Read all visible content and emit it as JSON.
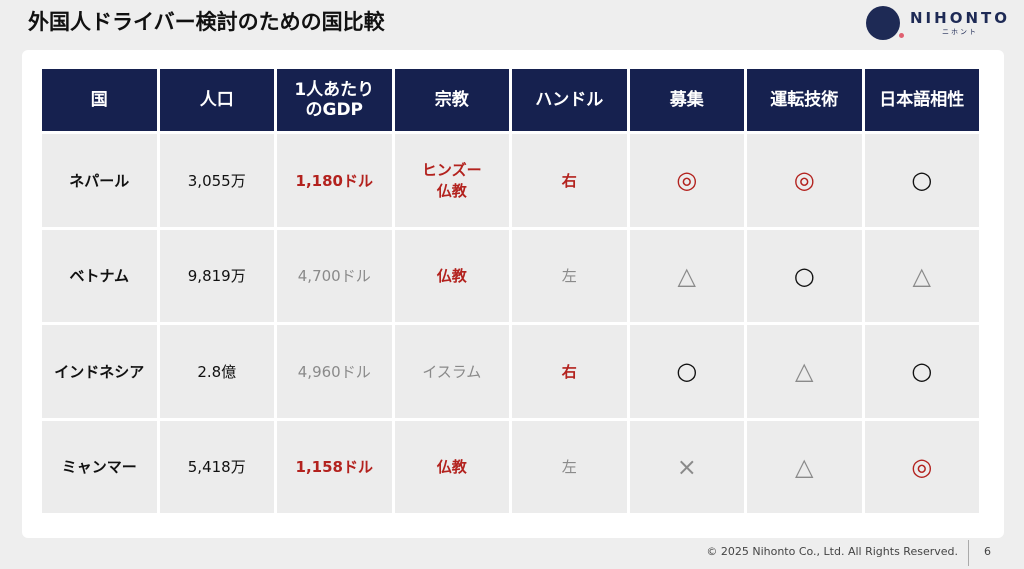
{
  "title": "外国人ドライバー検討のための国比較",
  "logo": {
    "name": "NIHONTO",
    "kana": "ニホント"
  },
  "colors": {
    "header": "#16214f",
    "accent_red": "#b3221e",
    "muted": "#8a8a8a"
  },
  "table": {
    "headers": [
      "国",
      "人口",
      "1人あたりのGDP",
      "宗教",
      "ハンドル",
      "募集",
      "運転技術",
      "日本語相性"
    ],
    "rows": [
      [
        {
          "t": "ネパール",
          "s": "name"
        },
        {
          "t": "3,055万"
        },
        {
          "t": "1,180ドル",
          "s": "red"
        },
        {
          "t": "ヒンズー\n仏教",
          "s": "red"
        },
        {
          "t": "右",
          "s": "red"
        },
        {
          "t": "◎",
          "s": "red sym"
        },
        {
          "t": "◎",
          "s": "red sym"
        },
        {
          "t": "○",
          "s": "sym"
        }
      ],
      [
        {
          "t": "ベトナム",
          "s": "name"
        },
        {
          "t": "9,819万"
        },
        {
          "t": "4,700ドル",
          "s": "grey"
        },
        {
          "t": "仏教",
          "s": "red"
        },
        {
          "t": "左",
          "s": "grey"
        },
        {
          "t": "△",
          "s": "grey sym"
        },
        {
          "t": "○",
          "s": "sym"
        },
        {
          "t": "△",
          "s": "grey sym"
        }
      ],
      [
        {
          "t": "インドネシア",
          "s": "name"
        },
        {
          "t": "2.8億"
        },
        {
          "t": "4,960ドル",
          "s": "grey"
        },
        {
          "t": "イスラム",
          "s": "grey"
        },
        {
          "t": "右",
          "s": "red"
        },
        {
          "t": "○",
          "s": "sym"
        },
        {
          "t": "△",
          "s": "grey sym"
        },
        {
          "t": "○",
          "s": "sym"
        }
      ],
      [
        {
          "t": "ミャンマー",
          "s": "name"
        },
        {
          "t": "5,418万"
        },
        {
          "t": "1,158ドル",
          "s": "red"
        },
        {
          "t": "仏教",
          "s": "red"
        },
        {
          "t": "左",
          "s": "grey"
        },
        {
          "t": "×",
          "s": "grey sym"
        },
        {
          "t": "△",
          "s": "grey sym"
        },
        {
          "t": "◎",
          "s": "red sym"
        }
      ]
    ]
  },
  "footer": {
    "copyright": "© 2025 Nihonto Co., Ltd. All Rights Reserved.",
    "page": "6"
  }
}
